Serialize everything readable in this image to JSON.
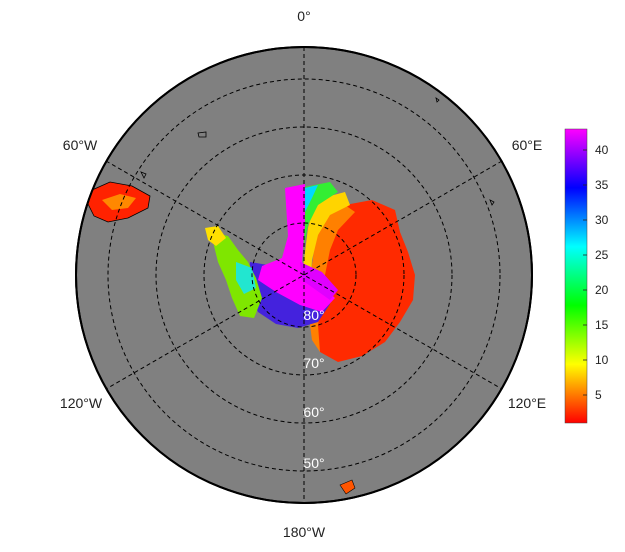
{
  "map": {
    "projection": "south-polar-stereographic",
    "ocean_color": "#808080",
    "background_color": "#ffffff",
    "graticule_style": "dashed",
    "longitude_labels": {
      "top": "0°",
      "upper_left": "60°W",
      "upper_right": "60°E",
      "lower_left": "120°W",
      "lower_right": "120°E",
      "bottom": "180°W"
    },
    "latitude_labels": [
      "80°",
      "70°",
      "60°",
      "50°"
    ],
    "colorbar": {
      "ticks": [
        "5",
        "10",
        "15",
        "20",
        "25",
        "30",
        "35",
        "40"
      ],
      "range": [
        1,
        43
      ],
      "colors": [
        "#ff0000",
        "#ff7f00",
        "#ffff00",
        "#7fff00",
        "#00ff00",
        "#00ff7f",
        "#00ffff",
        "#007fff",
        "#0000ff",
        "#7f00ff",
        "#ff00ff"
      ]
    }
  }
}
